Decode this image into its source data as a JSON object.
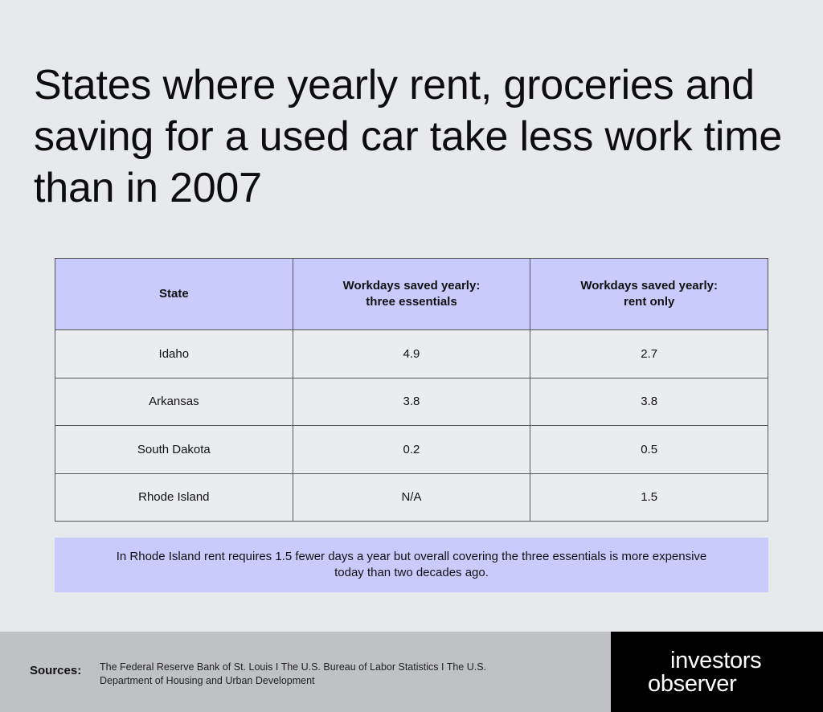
{
  "title": "States where yearly rent, groceries and saving for a used car take less work time than in 2007",
  "chart_data": {
    "type": "table",
    "columns": [
      {
        "line1": "State",
        "line2": ""
      },
      {
        "line1": "Workdays saved yearly:",
        "line2": "three essentials"
      },
      {
        "line1": "Workdays saved yearly:",
        "line2": "rent only"
      }
    ],
    "rows": [
      [
        "Idaho",
        "4.9",
        "2.7"
      ],
      [
        "Arkansas",
        "3.8",
        "3.8"
      ],
      [
        "South Dakota",
        "0.2",
        "0.5"
      ],
      [
        "Rhode Island",
        "N/A",
        "1.5"
      ]
    ]
  },
  "note": "In Rhode Island rent requires 1.5 fewer days a year but overall covering the three essentials is more expensive today than two decades ago.",
  "footer": {
    "sources_label": "Sources:",
    "sources_text": "The Federal Reserve Bank of St. Louis  I  The U.S. Bureau of Labor Statistics  I  The U.S. Department of Housing and Urban Development",
    "brand_line1": "investors",
    "brand_line2": "observer"
  },
  "colors": {
    "background": "#e8e9ed",
    "header_fill": "#c9cbfd",
    "footer_gray": "#c0c1c5",
    "brand_black": "#000000"
  }
}
